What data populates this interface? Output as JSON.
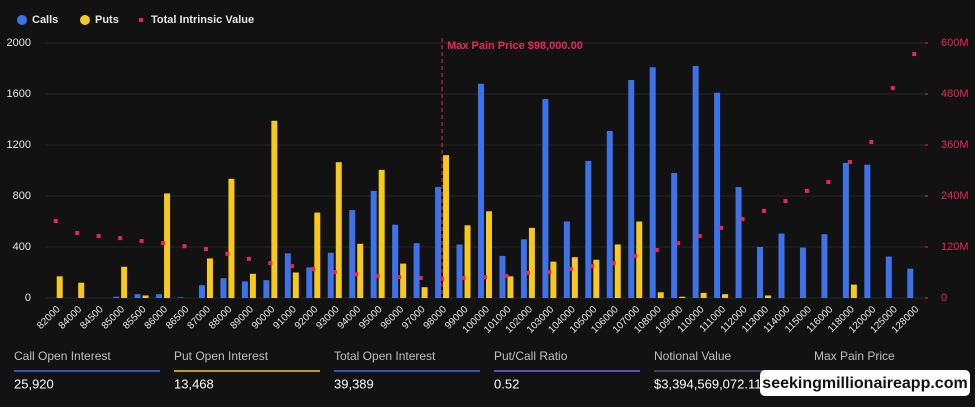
{
  "chart_data": {
    "type": "bar",
    "categories": [
      "82000",
      "84000",
      "84500",
      "85000",
      "85500",
      "86000",
      "86500",
      "87000",
      "88000",
      "89000",
      "90000",
      "91000",
      "92000",
      "93000",
      "94000",
      "95000",
      "96000",
      "97000",
      "98000",
      "99000",
      "100000",
      "101000",
      "102000",
      "103000",
      "104000",
      "105000",
      "106000",
      "107000",
      "108000",
      "109000",
      "110000",
      "111000",
      "112000",
      "113000",
      "114000",
      "115000",
      "116000",
      "118000",
      "120000",
      "125000",
      "128000"
    ],
    "series": [
      {
        "name": "Calls",
        "color": "#3d72e8",
        "type": "bar",
        "values": [
          0,
          0,
          0,
          10,
          30,
          30,
          5,
          100,
          155,
          130,
          140,
          350,
          240,
          355,
          690,
          840,
          575,
          430,
          870,
          420,
          1680,
          330,
          460,
          1560,
          600,
          1075,
          1310,
          1710,
          1810,
          980,
          1820,
          1610,
          870,
          400,
          505,
          395,
          500,
          1060,
          1045,
          325,
          230
        ]
      },
      {
        "name": "Puts",
        "color": "#f7c81e",
        "type": "bar",
        "values": [
          170,
          120,
          0,
          245,
          20,
          820,
          0,
          310,
          935,
          190,
          1390,
          200,
          670,
          1065,
          425,
          1005,
          270,
          85,
          1120,
          570,
          680,
          170,
          550,
          285,
          320,
          300,
          420,
          600,
          45,
          10,
          40,
          30,
          0,
          20,
          0,
          0,
          0,
          105,
          0,
          0,
          0
        ]
      },
      {
        "name": "Total Intrinsic Value",
        "color": "#e8265e",
        "type": "scatter",
        "axis": "y2",
        "values": [
          181,
          153,
          146,
          141,
          134,
          129,
          122,
          115,
          104,
          92,
          82,
          75,
          68,
          61,
          56,
          52,
          49,
          47,
          45,
          47,
          49,
          52,
          59,
          61,
          68,
          75,
          82,
          99,
          113,
          129,
          146,
          165,
          186,
          205,
          228,
          252,
          273,
          320,
          367,
          494,
          574
        ]
      }
    ],
    "ylim": [
      0,
      2000
    ],
    "yticks": [
      0,
      400,
      800,
      1200,
      1600,
      2000
    ],
    "y2lim": [
      0,
      600
    ],
    "y2ticks": [
      0,
      {
        "value": 120,
        "label": "120M"
      },
      {
        "value": 240,
        "label": "240M"
      },
      {
        "value": 360,
        "label": "360M"
      },
      {
        "value": 480,
        "label": "480M"
      },
      {
        "value": 600,
        "label": "600M"
      }
    ],
    "grid": true,
    "annotation": {
      "text": "Max Pain Price $98,000.00",
      "category": "98000",
      "color": "#e8265e"
    }
  },
  "stats": [
    {
      "label": "Call Open Interest",
      "value": "25,920",
      "color": "#3d72e8"
    },
    {
      "label": "Put Open Interest",
      "value": "13,468",
      "color": "#f7c81e"
    },
    {
      "label": "Total Open Interest",
      "value": "39,389",
      "color": "#3d72e8"
    },
    {
      "label": "Put/Call Ratio",
      "value": "0.52",
      "color": "#7b5cff"
    },
    {
      "label": "Notional Value",
      "value": "$3,394,569,072.11",
      "color": "#4a4f7a"
    },
    {
      "label": "Max Pain Price",
      "value": "",
      "color": "#e8265e"
    }
  ],
  "watermark": "seekingmillionaireapp.com"
}
